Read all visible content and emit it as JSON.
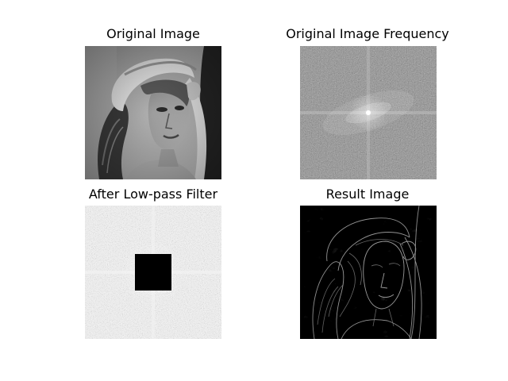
{
  "chart_data": [
    {
      "type": "image",
      "title": "Original Image",
      "content": "grayscale photograph of a woman wearing a wide-brimmed hat"
    },
    {
      "type": "image",
      "title": "Original Image Frequency",
      "content": "log-magnitude Fourier spectrum, centered, bright cross through center"
    },
    {
      "type": "image",
      "title": "After Low-pass Filter",
      "content": "frequency spectrum with a black square mask over the center"
    },
    {
      "type": "image",
      "title": "Result Image",
      "content": "reconstructed image showing edges on a black background"
    }
  ],
  "colors": {
    "background": "#ffffff",
    "mask": "#000000"
  }
}
